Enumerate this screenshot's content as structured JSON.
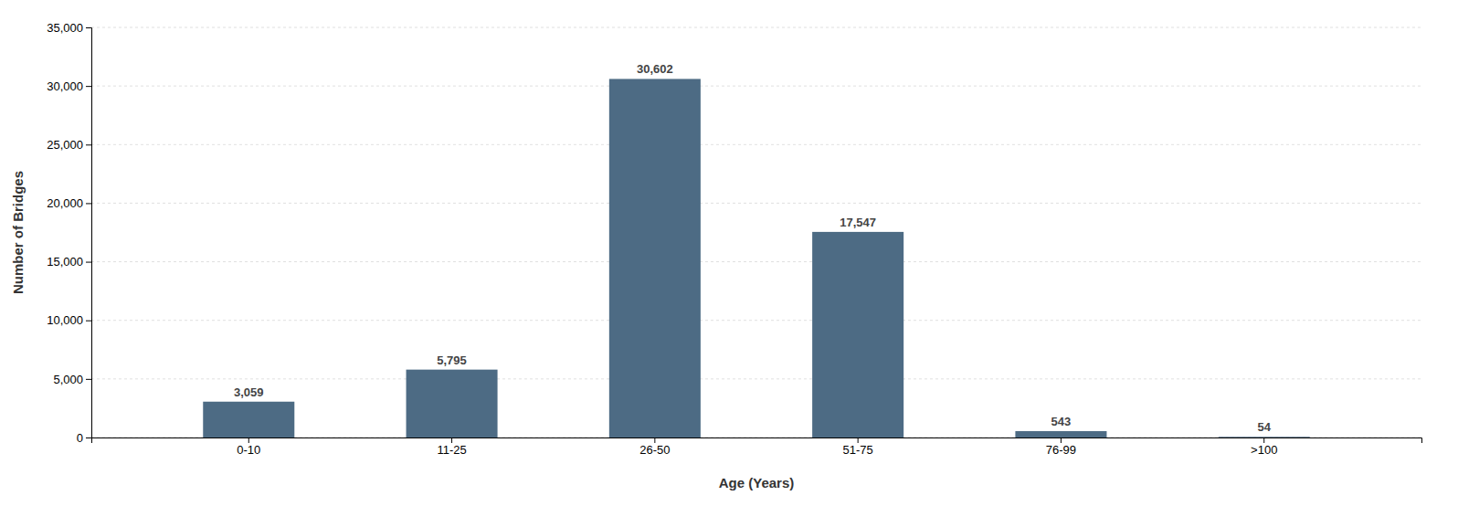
{
  "chart_data": {
    "type": "bar",
    "categories": [
      "0-10",
      "11-25",
      "26-50",
      "51-75",
      "76-99",
      ">100"
    ],
    "values": [
      3059,
      5795,
      30602,
      17547,
      543,
      54
    ],
    "value_labels": [
      "3,059",
      "5,795",
      "30,602",
      "17,547",
      "543",
      "54"
    ],
    "data_labels": true,
    "color": "#4d6b84",
    "xlabel": "Age (Years)",
    "ylabel": "Number of Bridges",
    "ylim": [
      0,
      35000
    ],
    "yticks": [
      0,
      {
        "value": 5000,
        "label": "5,000"
      },
      {
        "value": 10000,
        "label": "10,000"
      },
      {
        "value": 15000,
        "label": "15,000"
      },
      {
        "value": 20000,
        "label": "20,000"
      },
      {
        "value": 25000,
        "label": "25,000"
      },
      {
        "value": 30000,
        "label": "30,000"
      },
      {
        "value": 35000,
        "label": "35,000"
      }
    ],
    "grid": true
  }
}
